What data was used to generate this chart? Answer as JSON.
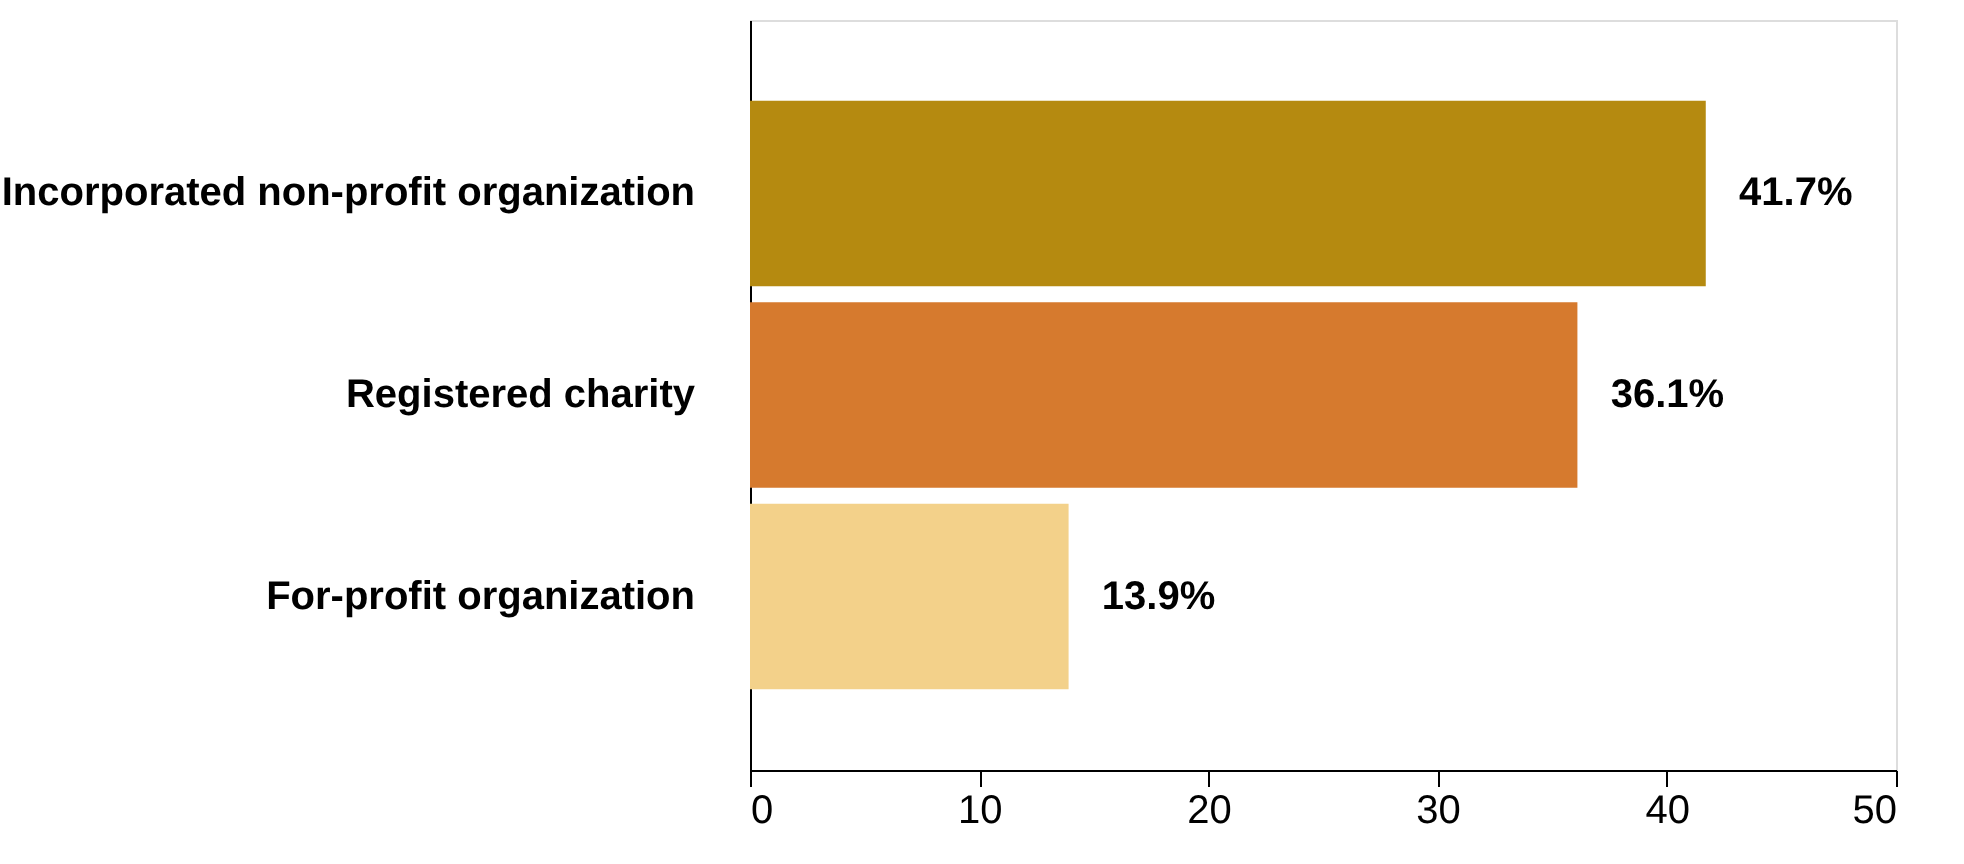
{
  "chart_data": {
    "type": "bar",
    "orientation": "horizontal",
    "categories": [
      "Incorporated non-profit organization",
      "Registered charity",
      "For-profit organization"
    ],
    "values": [
      41.7,
      36.1,
      13.9
    ],
    "colors": [
      "#b58a10",
      "#d67a2e",
      "#f3d18a"
    ],
    "value_labels": [
      "41.7%",
      "36.1%",
      "13.9%"
    ],
    "xlim": [
      0,
      50
    ],
    "xticks": [
      0,
      10,
      20,
      30,
      40,
      50
    ],
    "grid": false
  }
}
